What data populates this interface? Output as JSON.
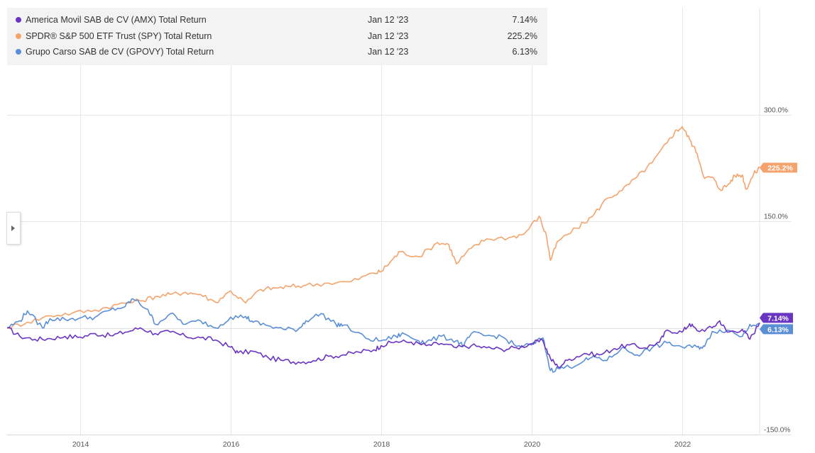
{
  "legend": [
    {
      "name": "America Movil SAB de CV (AMX) Total Return",
      "date": "Jan 12 '23",
      "value": "7.14%",
      "color": "#6a35c2"
    },
    {
      "name": "SPDR® S&P 500 ETF Trust (SPY) Total Return",
      "date": "Jan 12 '23",
      "value": "225.2%",
      "color": "#f5a36c"
    },
    {
      "name": "Grupo Carso SAB de CV (GPOVY) Total Return",
      "date": "Jan 12 '23",
      "value": "6.13%",
      "color": "#5a8fd6"
    }
  ],
  "chart_data": {
    "type": "line",
    "title": "",
    "xlabel": "",
    "ylabel": "",
    "x_ticks": [
      "2014",
      "2016",
      "2018",
      "2020",
      "2022"
    ],
    "x_tick_years": [
      2014,
      2016,
      2018,
      2020,
      2022
    ],
    "y_ticks": [
      {
        "value": 300,
        "label": "300.0%"
      },
      {
        "value": 150,
        "label": "150.0%"
      },
      {
        "value": -150,
        "label": "-150.0%"
      }
    ],
    "ylim": [
      -150,
      450
    ],
    "xlim": [
      2013.03,
      2023.03
    ],
    "grid": true,
    "series": [
      {
        "name": "America Movil SAB de CV (AMX) Total Return",
        "color": "#6a35c2",
        "end_label": "7.14%",
        "points": [
          [
            2013.03,
            0
          ],
          [
            2013.2,
            -12
          ],
          [
            2013.4,
            -16
          ],
          [
            2013.6,
            -15
          ],
          [
            2013.8,
            -12
          ],
          [
            2014.0,
            -13
          ],
          [
            2014.2,
            -8
          ],
          [
            2014.4,
            -11
          ],
          [
            2014.6,
            -6
          ],
          [
            2014.8,
            0
          ],
          [
            2015.0,
            -8
          ],
          [
            2015.2,
            -6
          ],
          [
            2015.4,
            -12
          ],
          [
            2015.6,
            -14
          ],
          [
            2015.8,
            -17
          ],
          [
            2016.0,
            -27
          ],
          [
            2016.1,
            -35
          ],
          [
            2016.3,
            -33
          ],
          [
            2016.5,
            -42
          ],
          [
            2016.7,
            -46
          ],
          [
            2016.9,
            -48
          ],
          [
            2017.1,
            -46
          ],
          [
            2017.3,
            -40
          ],
          [
            2017.5,
            -38
          ],
          [
            2017.7,
            -34
          ],
          [
            2017.9,
            -31
          ],
          [
            2018.0,
            -25
          ],
          [
            2018.2,
            -19
          ],
          [
            2018.4,
            -20
          ],
          [
            2018.6,
            -25
          ],
          [
            2018.8,
            -22
          ],
          [
            2019.0,
            -28
          ],
          [
            2019.2,
            -25
          ],
          [
            2019.4,
            -28
          ],
          [
            2019.6,
            -30
          ],
          [
            2019.8,
            -28
          ],
          [
            2020.0,
            -22
          ],
          [
            2020.15,
            -18
          ],
          [
            2020.25,
            -43
          ],
          [
            2020.35,
            -55
          ],
          [
            2020.5,
            -44
          ],
          [
            2020.7,
            -36
          ],
          [
            2020.9,
            -38
          ],
          [
            2021.1,
            -29
          ],
          [
            2021.3,
            -24
          ],
          [
            2021.5,
            -28
          ],
          [
            2021.7,
            -20
          ],
          [
            2021.8,
            -3
          ],
          [
            2022.0,
            -6
          ],
          [
            2022.1,
            6
          ],
          [
            2022.2,
            -4
          ],
          [
            2022.4,
            0
          ],
          [
            2022.5,
            10
          ],
          [
            2022.6,
            -6
          ],
          [
            2022.8,
            -2
          ],
          [
            2022.9,
            -16
          ],
          [
            2023.03,
            7.14
          ]
        ]
      },
      {
        "name": "SPDR® S&P 500 ETF Trust (SPY) Total Return",
        "color": "#f5a36c",
        "end_label": "225.2%",
        "points": [
          [
            2013.03,
            0
          ],
          [
            2013.3,
            8
          ],
          [
            2013.6,
            17
          ],
          [
            2013.9,
            21
          ],
          [
            2014.2,
            25
          ],
          [
            2014.5,
            33
          ],
          [
            2014.8,
            38
          ],
          [
            2015.0,
            44
          ],
          [
            2015.2,
            47
          ],
          [
            2015.4,
            50
          ],
          [
            2015.6,
            47
          ],
          [
            2015.8,
            36
          ],
          [
            2016.0,
            52
          ],
          [
            2016.2,
            35
          ],
          [
            2016.4,
            54
          ],
          [
            2016.6,
            56
          ],
          [
            2016.8,
            58
          ],
          [
            2017.0,
            60
          ],
          [
            2017.3,
            63
          ],
          [
            2017.6,
            65
          ],
          [
            2017.9,
            77
          ],
          [
            2018.0,
            79
          ],
          [
            2018.15,
            96
          ],
          [
            2018.25,
            107
          ],
          [
            2018.5,
            100
          ],
          [
            2018.75,
            120
          ],
          [
            2018.9,
            117
          ],
          [
            2019.0,
            90
          ],
          [
            2019.2,
            112
          ],
          [
            2019.4,
            125
          ],
          [
            2019.7,
            127
          ],
          [
            2019.9,
            132
          ],
          [
            2020.1,
            157
          ],
          [
            2020.2,
            128
          ],
          [
            2020.25,
            95
          ],
          [
            2020.35,
            122
          ],
          [
            2020.6,
            140
          ],
          [
            2020.8,
            156
          ],
          [
            2021.0,
            182
          ],
          [
            2021.2,
            193
          ],
          [
            2021.4,
            212
          ],
          [
            2021.6,
            232
          ],
          [
            2021.8,
            260
          ],
          [
            2021.9,
            275
          ],
          [
            2022.0,
            283
          ],
          [
            2022.1,
            265
          ],
          [
            2022.2,
            245
          ],
          [
            2022.3,
            210
          ],
          [
            2022.4,
            212
          ],
          [
            2022.5,
            195
          ],
          [
            2022.6,
            200
          ],
          [
            2022.7,
            214
          ],
          [
            2022.8,
            215
          ],
          [
            2022.85,
            195
          ],
          [
            2022.95,
            216
          ],
          [
            2023.03,
            225.2
          ]
        ]
      },
      {
        "name": "Grupo Carso SAB de CV (GPOVY) Total Return",
        "color": "#5a8fd6",
        "end_label": "6.13%",
        "points": [
          [
            2013.03,
            0
          ],
          [
            2013.2,
            10
          ],
          [
            2013.3,
            24
          ],
          [
            2013.5,
            0
          ],
          [
            2013.6,
            13
          ],
          [
            2013.8,
            12
          ],
          [
            2014.0,
            14
          ],
          [
            2014.2,
            15
          ],
          [
            2014.4,
            25
          ],
          [
            2014.6,
            30
          ],
          [
            2014.7,
            41
          ],
          [
            2014.9,
            26
          ],
          [
            2015.0,
            5
          ],
          [
            2015.2,
            20
          ],
          [
            2015.4,
            5
          ],
          [
            2015.6,
            10
          ],
          [
            2015.8,
            0
          ],
          [
            2016.0,
            15
          ],
          [
            2016.2,
            16
          ],
          [
            2016.3,
            8
          ],
          [
            2016.5,
            3
          ],
          [
            2016.7,
            -2
          ],
          [
            2016.9,
            -2
          ],
          [
            2017.0,
            10
          ],
          [
            2017.2,
            20
          ],
          [
            2017.4,
            5
          ],
          [
            2017.5,
            4
          ],
          [
            2017.8,
            -15
          ],
          [
            2018.0,
            -18
          ],
          [
            2018.2,
            -12
          ],
          [
            2018.3,
            -8
          ],
          [
            2018.5,
            -18
          ],
          [
            2018.6,
            -20
          ],
          [
            2018.8,
            -12
          ],
          [
            2019.0,
            -18
          ],
          [
            2019.1,
            -25
          ],
          [
            2019.2,
            -8
          ],
          [
            2019.4,
            -11
          ],
          [
            2019.6,
            -12
          ],
          [
            2019.8,
            -26
          ],
          [
            2020.0,
            -24
          ],
          [
            2020.15,
            -14
          ],
          [
            2020.25,
            -60
          ],
          [
            2020.35,
            -57
          ],
          [
            2020.5,
            -55
          ],
          [
            2020.7,
            -46
          ],
          [
            2020.85,
            -41
          ],
          [
            2021.0,
            -46
          ],
          [
            2021.2,
            -28
          ],
          [
            2021.4,
            -38
          ],
          [
            2021.6,
            -28
          ],
          [
            2021.8,
            -21
          ],
          [
            2022.0,
            -27
          ],
          [
            2022.2,
            -27
          ],
          [
            2022.3,
            -26
          ],
          [
            2022.4,
            -5
          ],
          [
            2022.6,
            -3
          ],
          [
            2022.8,
            -12
          ],
          [
            2022.9,
            5
          ],
          [
            2023.03,
            6.13
          ]
        ]
      }
    ]
  }
}
